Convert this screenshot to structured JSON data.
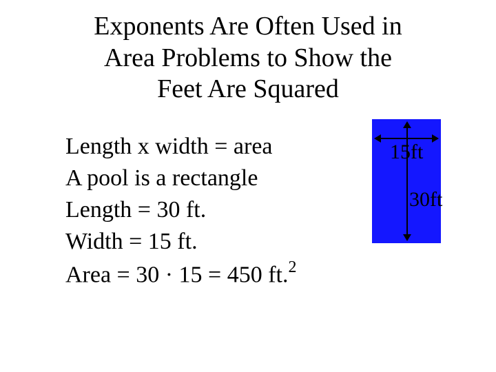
{
  "title": {
    "line1": "Exponents Are Often Used in",
    "line2": "Area Problems to Show the",
    "line3": "Feet Are Squared"
  },
  "body": {
    "line1": "Length x width = area",
    "line2": "A pool is a rectangle",
    "line3": "Length = 30 ft.",
    "line4": "Width = 15 ft.",
    "area_prefix": "Area = 30 · 15 = 450 ft.",
    "area_exponent": "2"
  },
  "pool": {
    "width_label": "15ft",
    "height_label": "30ft",
    "fill_color": "#1417ff",
    "width_value": 15,
    "height_value": 30
  }
}
